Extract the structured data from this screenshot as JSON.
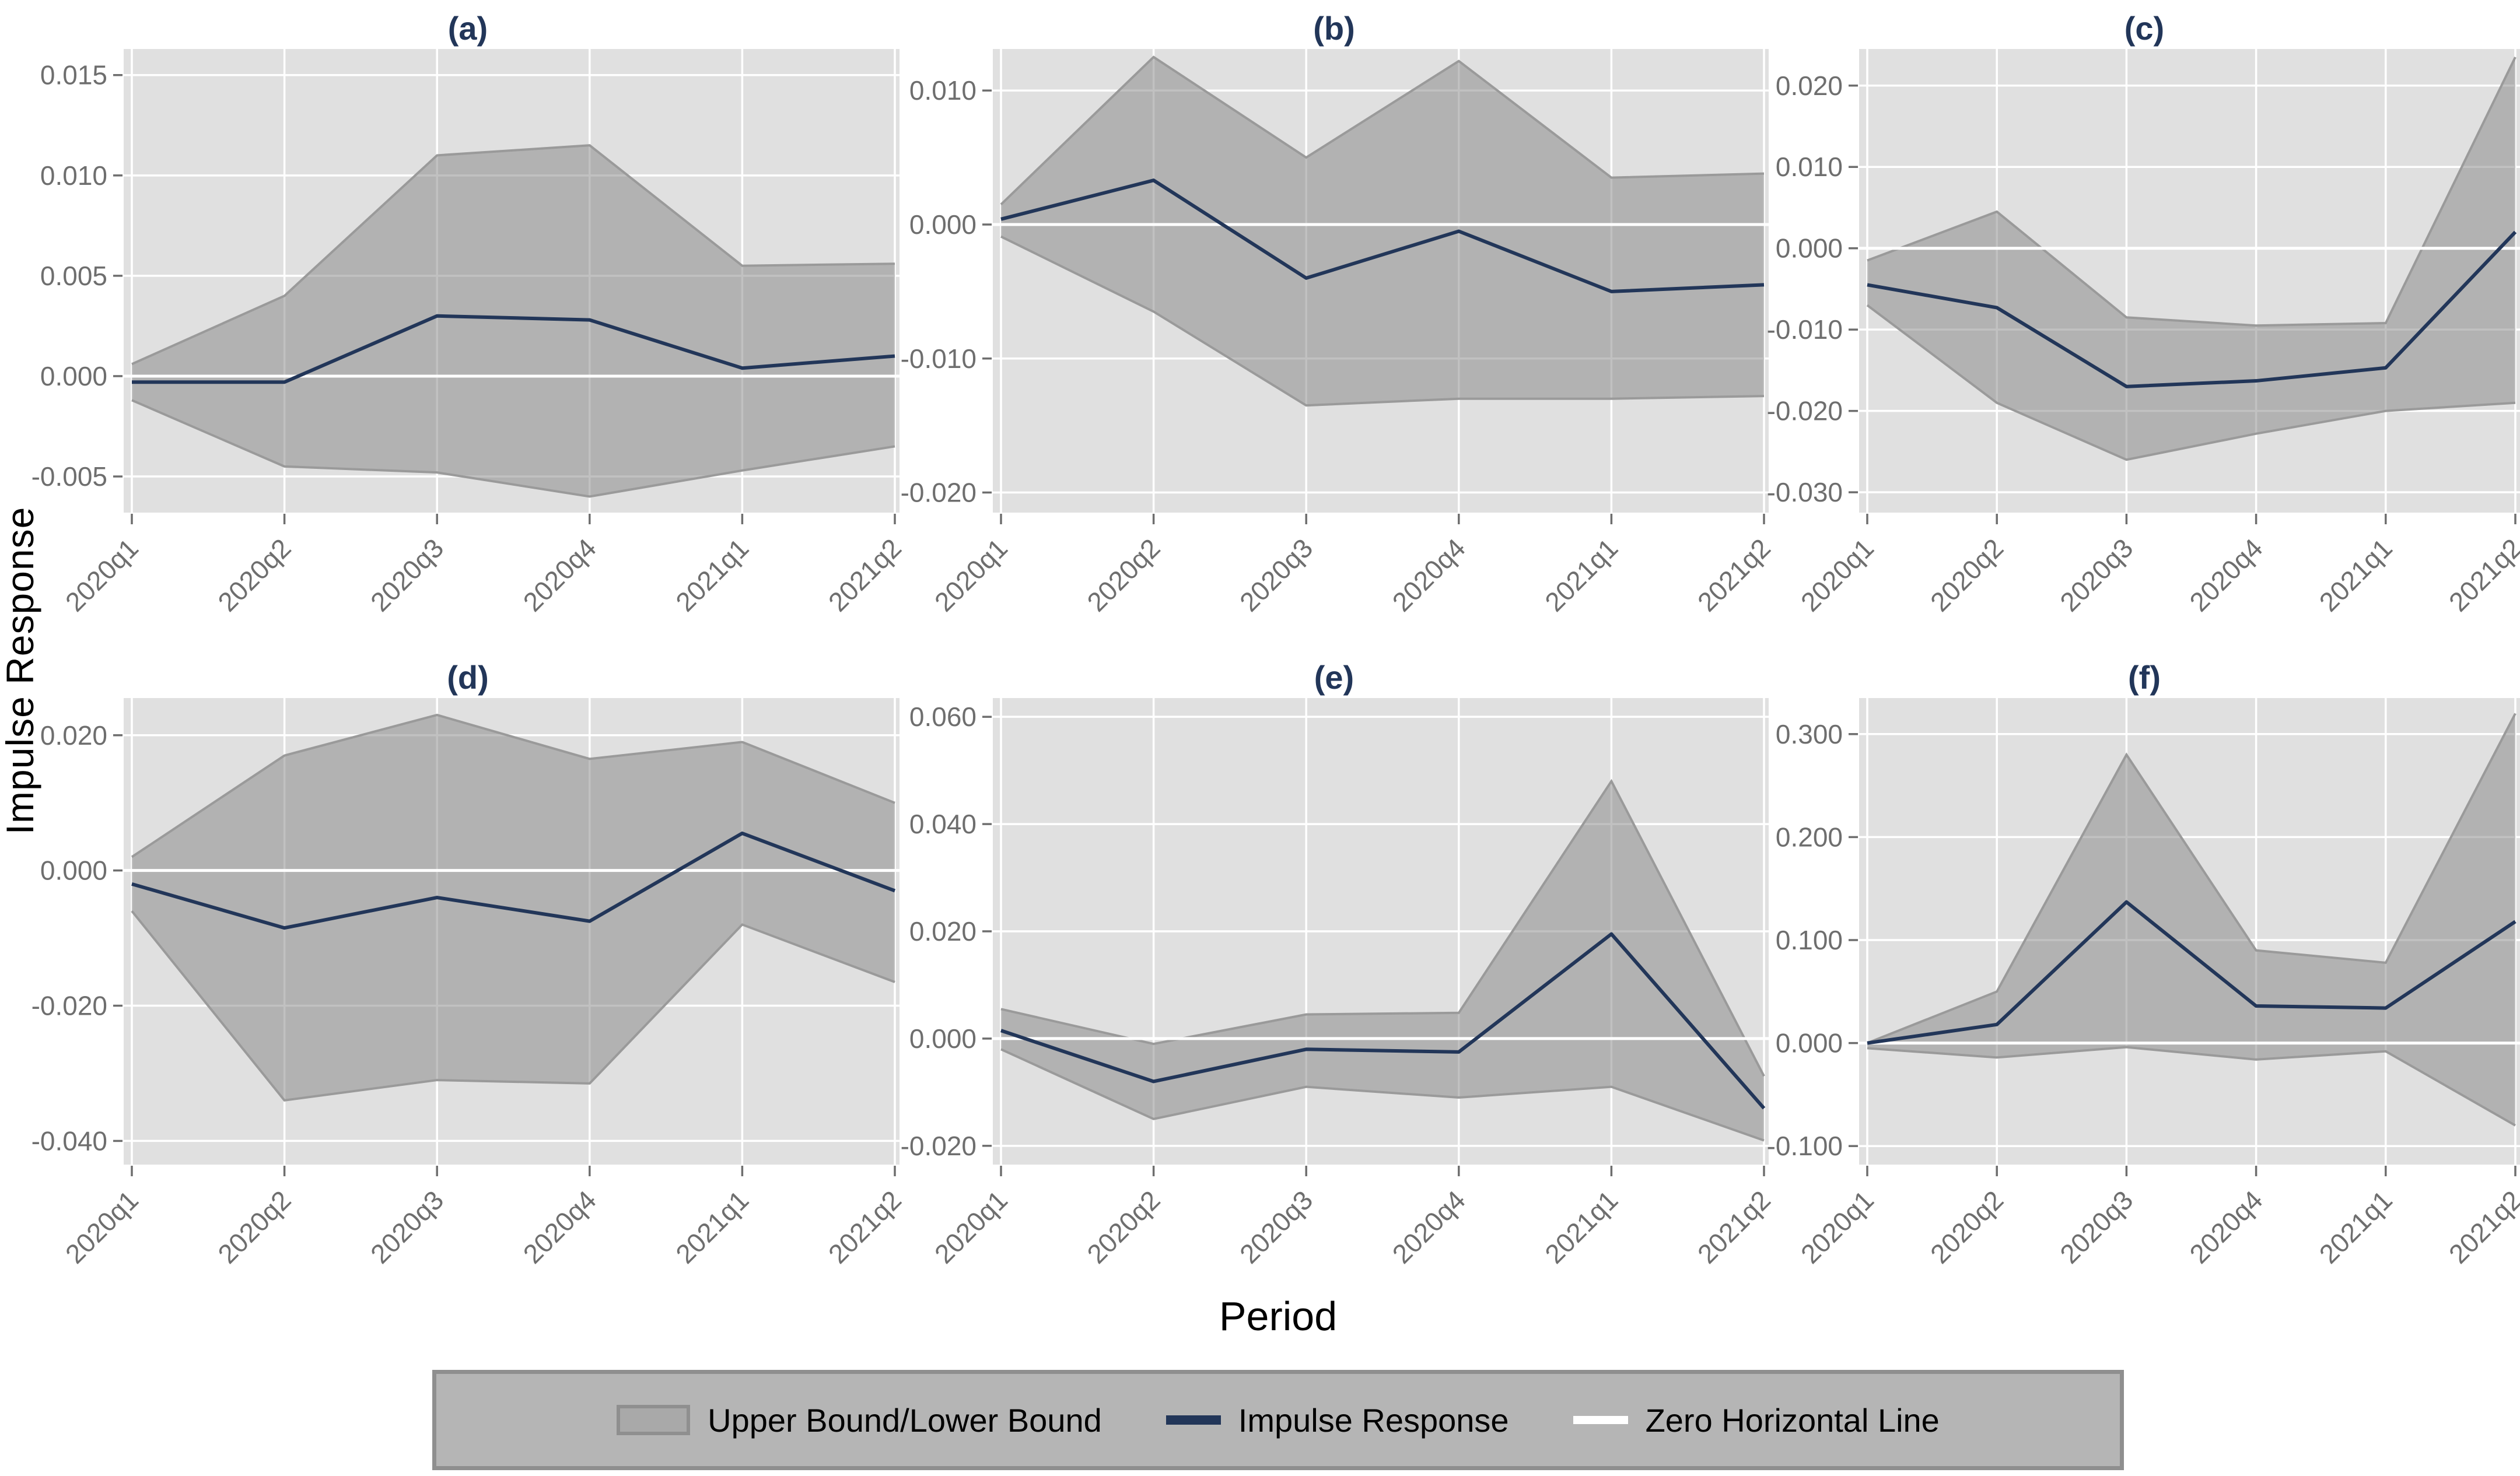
{
  "figure": {
    "y_axis_label": "Impulse Response",
    "x_axis_label": "Period",
    "colors": {
      "impulse_line": "#223659",
      "title_text": "#223659",
      "band_fill": "rgba(132,132,132,0.5)",
      "band_edge": "#9a9a9a",
      "panel_background": "#e0e0e0",
      "gridline": "#ffffff",
      "zero_line": "#ffffff",
      "tick_text": "#6e6e6e",
      "legend_background": "#b5b5b5",
      "legend_border": "#8f8f8f"
    }
  },
  "legend": {
    "items": [
      {
        "swatch": "band",
        "label": "Upper Bound/Lower Bound"
      },
      {
        "swatch": "navy-line",
        "label": "Impulse Response"
      },
      {
        "swatch": "white-line",
        "label": "Zero Horizontal Line"
      }
    ]
  },
  "chart_data": [
    {
      "type": "area",
      "title": "(a)",
      "categories": [
        "2020q1",
        "2020q2",
        "2020q3",
        "2020q4",
        "2021q1",
        "2021q2"
      ],
      "ylim": [
        -0.0068,
        0.0163
      ],
      "yticks": [
        {
          "v": 0.015,
          "label": "0.015"
        },
        {
          "v": 0.01,
          "label": "0.010"
        },
        {
          "v": 0.005,
          "label": "0.005"
        },
        {
          "v": 0.0,
          "label": "0.000"
        },
        {
          "v": -0.005,
          "label": "-0.005"
        }
      ],
      "series": [
        {
          "name": "Upper Bound",
          "values": [
            0.0006,
            0.004,
            0.011,
            0.0115,
            0.0055,
            0.0056
          ]
        },
        {
          "name": "Impulse Response",
          "values": [
            -0.0003,
            -0.0003,
            0.003,
            0.0028,
            0.0004,
            0.001
          ]
        },
        {
          "name": "Lower Bound",
          "values": [
            -0.0012,
            -0.0045,
            -0.0048,
            -0.006,
            -0.0047,
            -0.0035
          ]
        }
      ]
    },
    {
      "type": "area",
      "title": "(b)",
      "categories": [
        "2020q1",
        "2020q2",
        "2020q3",
        "2020q4",
        "2021q1",
        "2021q2"
      ],
      "ylim": [
        -0.0215,
        0.0131
      ],
      "yticks": [
        {
          "v": 0.01,
          "label": "0.010"
        },
        {
          "v": 0.0,
          "label": "0.000"
        },
        {
          "v": -0.01,
          "label": "-0.010"
        },
        {
          "v": -0.02,
          "label": "-0.020"
        }
      ],
      "series": [
        {
          "name": "Upper Bound",
          "values": [
            0.0015,
            0.0125,
            0.005,
            0.0122,
            0.0035,
            0.0038
          ]
        },
        {
          "name": "Impulse Response",
          "values": [
            0.0004,
            0.0033,
            -0.004,
            -0.0005,
            -0.005,
            -0.0045
          ]
        },
        {
          "name": "Lower Bound",
          "values": [
            -0.0009,
            -0.0065,
            -0.0135,
            -0.013,
            -0.013,
            -0.0128
          ]
        }
      ]
    },
    {
      "type": "area",
      "title": "(c)",
      "categories": [
        "2020q1",
        "2020q2",
        "2020q3",
        "2020q4",
        "2021q1",
        "2021q2"
      ],
      "ylim": [
        -0.0325,
        0.0245
      ],
      "yticks": [
        {
          "v": 0.02,
          "label": "0.020"
        },
        {
          "v": 0.01,
          "label": "0.010"
        },
        {
          "v": 0.0,
          "label": "0.000"
        },
        {
          "v": -0.01,
          "label": "-0.010"
        },
        {
          "v": -0.02,
          "label": "-0.020"
        },
        {
          "v": -0.03,
          "label": "-0.030"
        }
      ],
      "series": [
        {
          "name": "Upper Bound",
          "values": [
            -0.0015,
            0.0045,
            -0.0085,
            -0.0095,
            -0.0092,
            0.0235
          ]
        },
        {
          "name": "Impulse Response",
          "values": [
            -0.0045,
            -0.0073,
            -0.017,
            -0.0163,
            -0.0147,
            0.002
          ]
        },
        {
          "name": "Lower Bound",
          "values": [
            -0.007,
            -0.019,
            -0.026,
            -0.0228,
            -0.02,
            -0.019
          ]
        }
      ]
    },
    {
      "type": "area",
      "title": "(d)",
      "categories": [
        "2020q1",
        "2020q2",
        "2020q3",
        "2020q4",
        "2021q1",
        "2021q2"
      ],
      "ylim": [
        -0.0435,
        0.0255
      ],
      "yticks": [
        {
          "v": 0.02,
          "label": "0.020"
        },
        {
          "v": 0.0,
          "label": "0.000"
        },
        {
          "v": -0.02,
          "label": "-0.020"
        },
        {
          "v": -0.04,
          "label": "-0.040"
        }
      ],
      "series": [
        {
          "name": "Upper Bound",
          "values": [
            0.002,
            0.017,
            0.023,
            0.0165,
            0.019,
            0.01
          ]
        },
        {
          "name": "Impulse Response",
          "values": [
            -0.002,
            -0.0085,
            -0.004,
            -0.0075,
            0.0055,
            -0.003
          ]
        },
        {
          "name": "Lower Bound",
          "values": [
            -0.006,
            -0.034,
            -0.031,
            -0.0315,
            -0.008,
            -0.0165
          ]
        }
      ]
    },
    {
      "type": "area",
      "title": "(e)",
      "categories": [
        "2020q1",
        "2020q2",
        "2020q3",
        "2020q4",
        "2021q1",
        "2021q2"
      ],
      "ylim": [
        -0.0235,
        0.0635
      ],
      "yticks": [
        {
          "v": 0.06,
          "label": "0.060"
        },
        {
          "v": 0.04,
          "label": "0.040"
        },
        {
          "v": 0.02,
          "label": "0.020"
        },
        {
          "v": 0.0,
          "label": "0.000"
        },
        {
          "v": -0.02,
          "label": "-0.020"
        }
      ],
      "series": [
        {
          "name": "Upper Bound",
          "values": [
            0.0055,
            -0.001,
            0.0045,
            0.0048,
            0.048,
            -0.007
          ]
        },
        {
          "name": "Impulse Response",
          "values": [
            0.0015,
            -0.008,
            -0.002,
            -0.0025,
            0.0195,
            -0.013
          ]
        },
        {
          "name": "Lower Bound",
          "values": [
            -0.002,
            -0.015,
            -0.009,
            -0.011,
            -0.009,
            -0.019
          ]
        }
      ]
    },
    {
      "type": "area",
      "title": "(f)",
      "categories": [
        "2020q1",
        "2020q2",
        "2020q3",
        "2020q4",
        "2021q1",
        "2021q2"
      ],
      "ylim": [
        -0.118,
        0.335
      ],
      "yticks": [
        {
          "v": 0.3,
          "label": "0.300"
        },
        {
          "v": 0.2,
          "label": "0.200"
        },
        {
          "v": 0.1,
          "label": "0.100"
        },
        {
          "v": 0.0,
          "label": "0.000"
        },
        {
          "v": -0.1,
          "label": "-0.100"
        }
      ],
      "series": [
        {
          "name": "Upper Bound",
          "values": [
            0.0,
            0.05,
            0.28,
            0.09,
            0.078,
            0.32
          ]
        },
        {
          "name": "Impulse Response",
          "values": [
            0.0,
            0.018,
            0.137,
            0.036,
            0.034,
            0.118
          ]
        },
        {
          "name": "Lower Bound",
          "values": [
            -0.005,
            -0.014,
            -0.004,
            -0.016,
            -0.008,
            -0.08
          ]
        }
      ]
    }
  ]
}
